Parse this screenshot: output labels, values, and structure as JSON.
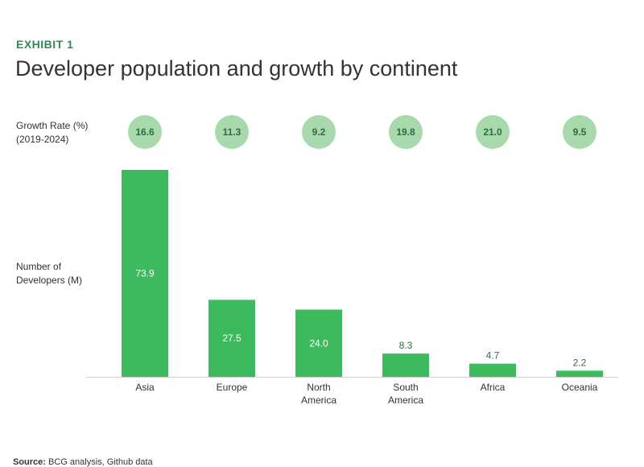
{
  "header": {
    "exhibit": "EXHIBIT 1",
    "title": "Developer population and growth by continent"
  },
  "labels": {
    "growth_line1": "Growth Rate (%)",
    "growth_line2": "(2019-2024)",
    "dev_line1": "Number of",
    "dev_line2": "Developers (M)"
  },
  "source": {
    "prefix": "Source:",
    "text": " BCG analysis, Github data"
  },
  "colors": {
    "bar": "#3dba5e",
    "bubble": "#a8d9ac",
    "accent": "#2e8b57"
  },
  "chart_data": {
    "type": "bar",
    "categories": [
      "Asia",
      "Europe",
      "North America",
      "South America",
      "Africa",
      "Oceania"
    ],
    "category_lines": [
      [
        "Asia"
      ],
      [
        "Europe"
      ],
      [
        "North",
        "America"
      ],
      [
        "South",
        "America"
      ],
      [
        "Africa"
      ],
      [
        "Oceania"
      ]
    ],
    "values": [
      73.9,
      27.5,
      24.0,
      8.3,
      4.7,
      2.2
    ],
    "value_labels": [
      "73.9",
      "27.5",
      "24.0",
      "8.3",
      "4.7",
      "2.2"
    ],
    "growth_rates": [
      "16.6",
      "11.3",
      "9.2",
      "19.8",
      "21.0",
      "9.5"
    ],
    "title": "Developer population and growth by continent",
    "ylabel": "Number of Developers (M)",
    "ylim": [
      0,
      73.9
    ]
  }
}
